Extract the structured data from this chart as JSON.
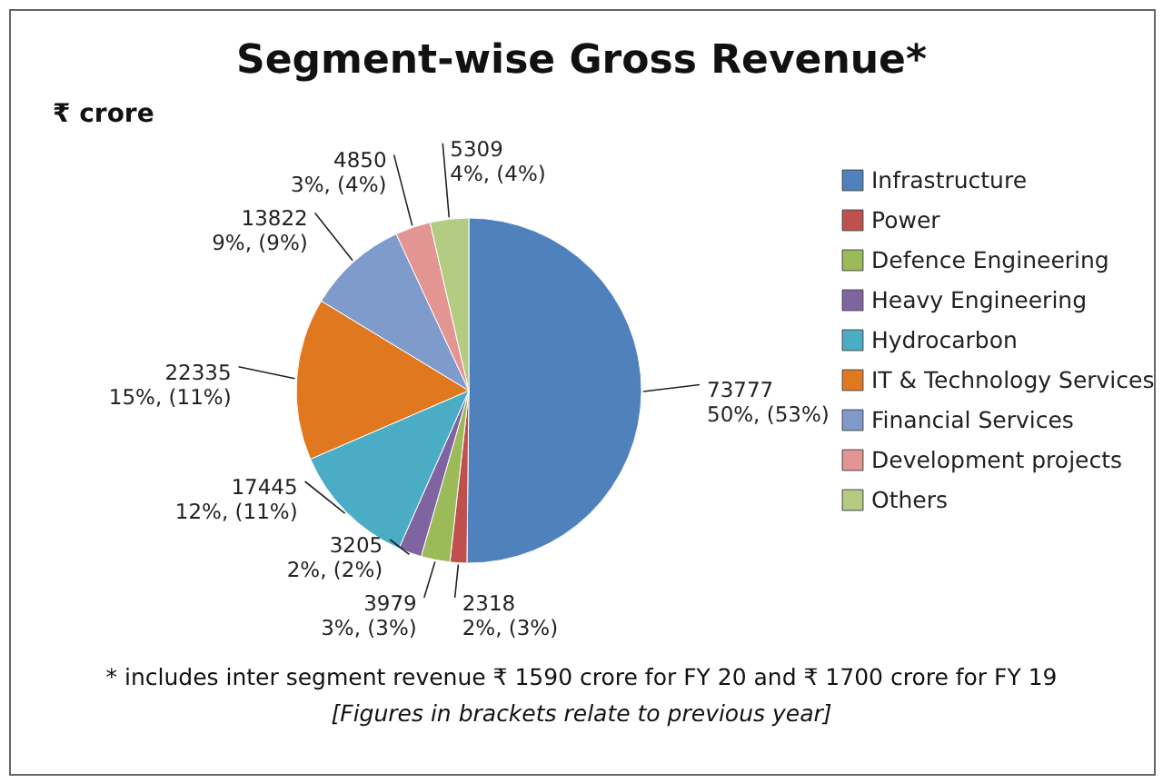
{
  "chart_data": {
    "type": "pie",
    "title": "Segment-wise Gross Revenue*",
    "subtitle": "₹ crore",
    "categories": [
      "Infrastructure",
      "Power",
      "Defence Engineering",
      "Heavy Engineering",
      "Hydrocarbon",
      "IT & Technology Services",
      "Financial Services",
      "Development projects",
      "Others"
    ],
    "values": [
      73777,
      2318,
      3979,
      3205,
      17445,
      22335,
      13822,
      4850,
      5309
    ],
    "colors": [
      "#4f81bd",
      "#c0504d",
      "#9bbb59",
      "#8064a2",
      "#4bacc6",
      "#e0781f",
      "#7f9bcb",
      "#e39593",
      "#b3cc82"
    ],
    "value_labels": [
      "73777\n50%, (53%)",
      "2318\n2%, (3%)",
      "3979\n3%, (3%)",
      "3205\n2%, (2%)",
      "17445\n12%, (11%)",
      "22335\n15%, (11%)",
      "13822\n9%, (9%)",
      "4850\n3%, (4%)",
      "5309\n4%, (4%)"
    ],
    "legend": "right",
    "annotations": [
      "* includes inter segment revenue ₹ 1590 crore for FY 20 and ₹ 1700 crore for FY 19",
      "[Figures in brackets relate to previous year]"
    ]
  }
}
